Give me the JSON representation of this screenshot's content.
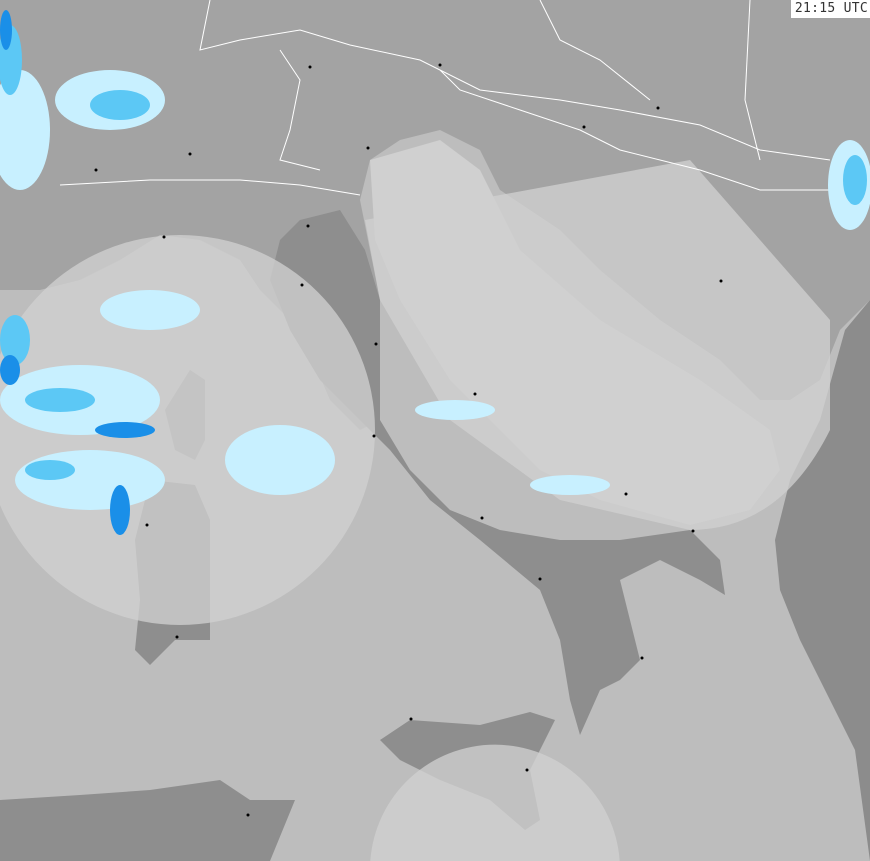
{
  "timestamp": "21:15 UTC",
  "colors": {
    "sea": "#bdbdbd",
    "land": "#a3a3a3",
    "land_dark": "#8e8e8e",
    "radar_coverage": "#cdcdcd",
    "precip_light": "#c8f0ff",
    "precip_medium": "#5cc8f5",
    "precip_heavy": "#1a8fe8"
  },
  "icons": [
    "city-dot"
  ]
}
